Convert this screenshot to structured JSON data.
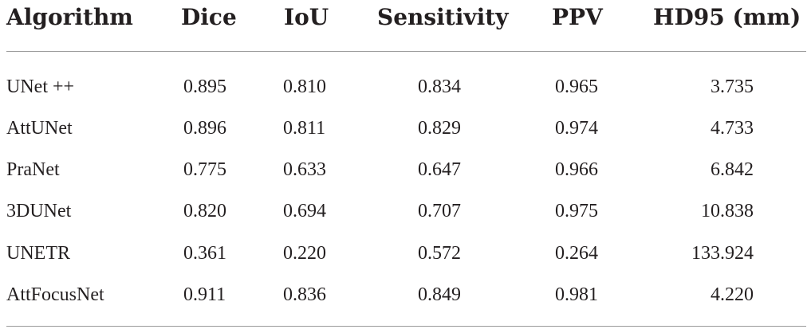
{
  "table": {
    "headers": {
      "algorithm": "Algorithm",
      "dice": "Dice",
      "iou": "IoU",
      "sensitivity": "Sensitivity",
      "ppv": "PPV",
      "hd95": "HD95 (mm)"
    },
    "rows": [
      {
        "algorithm": "UNet ++",
        "dice": "0.895",
        "iou": "0.810",
        "sensitivity": "0.834",
        "ppv": "0.965",
        "hd95": "3.735"
      },
      {
        "algorithm": "AttUNet",
        "dice": "0.896",
        "iou": "0.811",
        "sensitivity": "0.829",
        "ppv": "0.974",
        "hd95": "4.733"
      },
      {
        "algorithm": "PraNet",
        "dice": "0.775",
        "iou": "0.633",
        "sensitivity": "0.647",
        "ppv": "0.966",
        "hd95": "6.842"
      },
      {
        "algorithm": "3DUNet",
        "dice": "0.820",
        "iou": "0.694",
        "sensitivity": "0.707",
        "ppv": "0.975",
        "hd95": "10.838"
      },
      {
        "algorithm": "UNETR",
        "dice": "0.361",
        "iou": "0.220",
        "sensitivity": "0.572",
        "ppv": "0.264",
        "hd95": "133.924"
      },
      {
        "algorithm": "AttFocusNet",
        "dice": "0.911",
        "iou": "0.836",
        "sensitivity": "0.849",
        "ppv": "0.981",
        "hd95": "4.220"
      }
    ]
  }
}
